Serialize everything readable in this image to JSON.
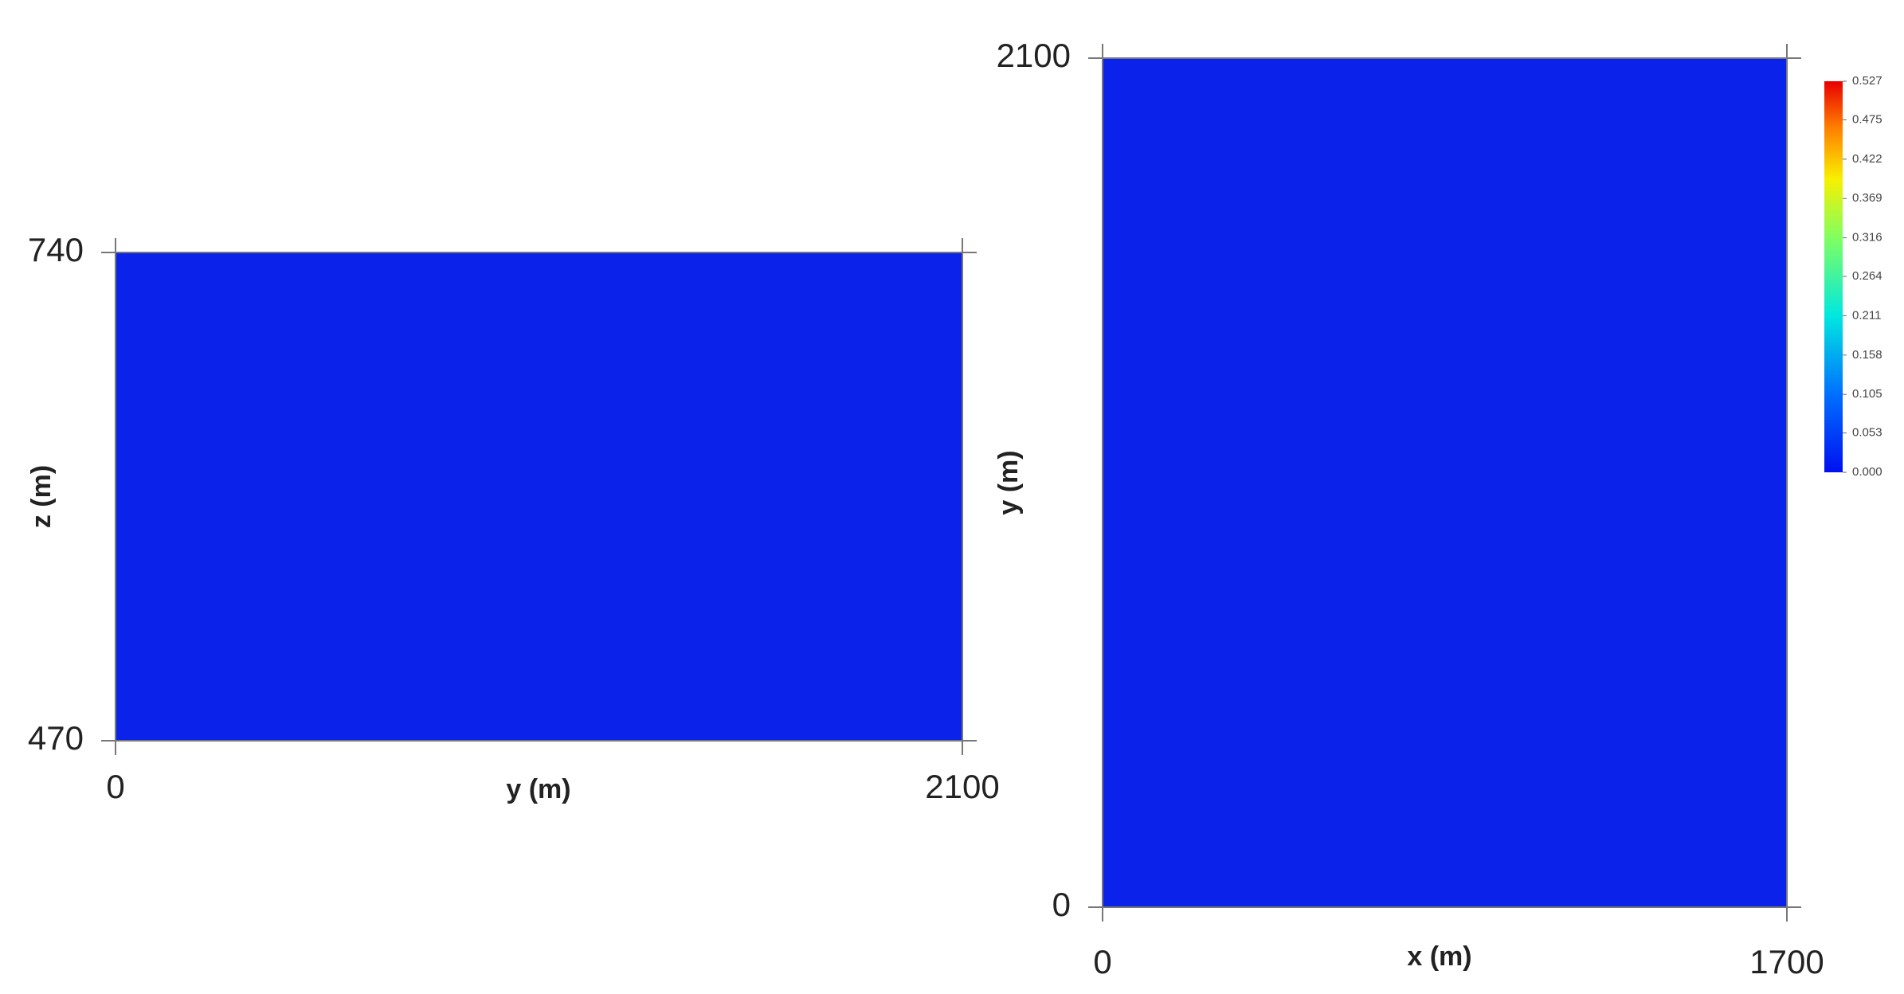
{
  "chart_data": [
    {
      "type": "heatmap",
      "xlabel": "y (m)",
      "ylabel": "z (m)",
      "xlim": [
        0,
        2100
      ],
      "ylim": [
        470,
        740
      ],
      "xticks": [
        0,
        2100
      ],
      "yticks": [
        470,
        740
      ],
      "color": "#0b22ea"
    },
    {
      "type": "heatmap",
      "xlabel": "x (m)",
      "ylabel": "y (m)",
      "xlim": [
        0,
        1700
      ],
      "ylim": [
        0,
        2100
      ],
      "xticks": [
        0,
        1700
      ],
      "yticks": [
        0,
        2100
      ],
      "color": "#0b22ea",
      "colorbar": {
        "lim": [
          0,
          0.527
        ],
        "ticks": [
          {
            "value": 0,
            "label": "0.000"
          },
          0.053,
          0.105,
          0.158,
          0.211,
          0.264,
          0.316,
          0.369,
          0.422,
          0.475,
          0.527
        ]
      }
    }
  ]
}
